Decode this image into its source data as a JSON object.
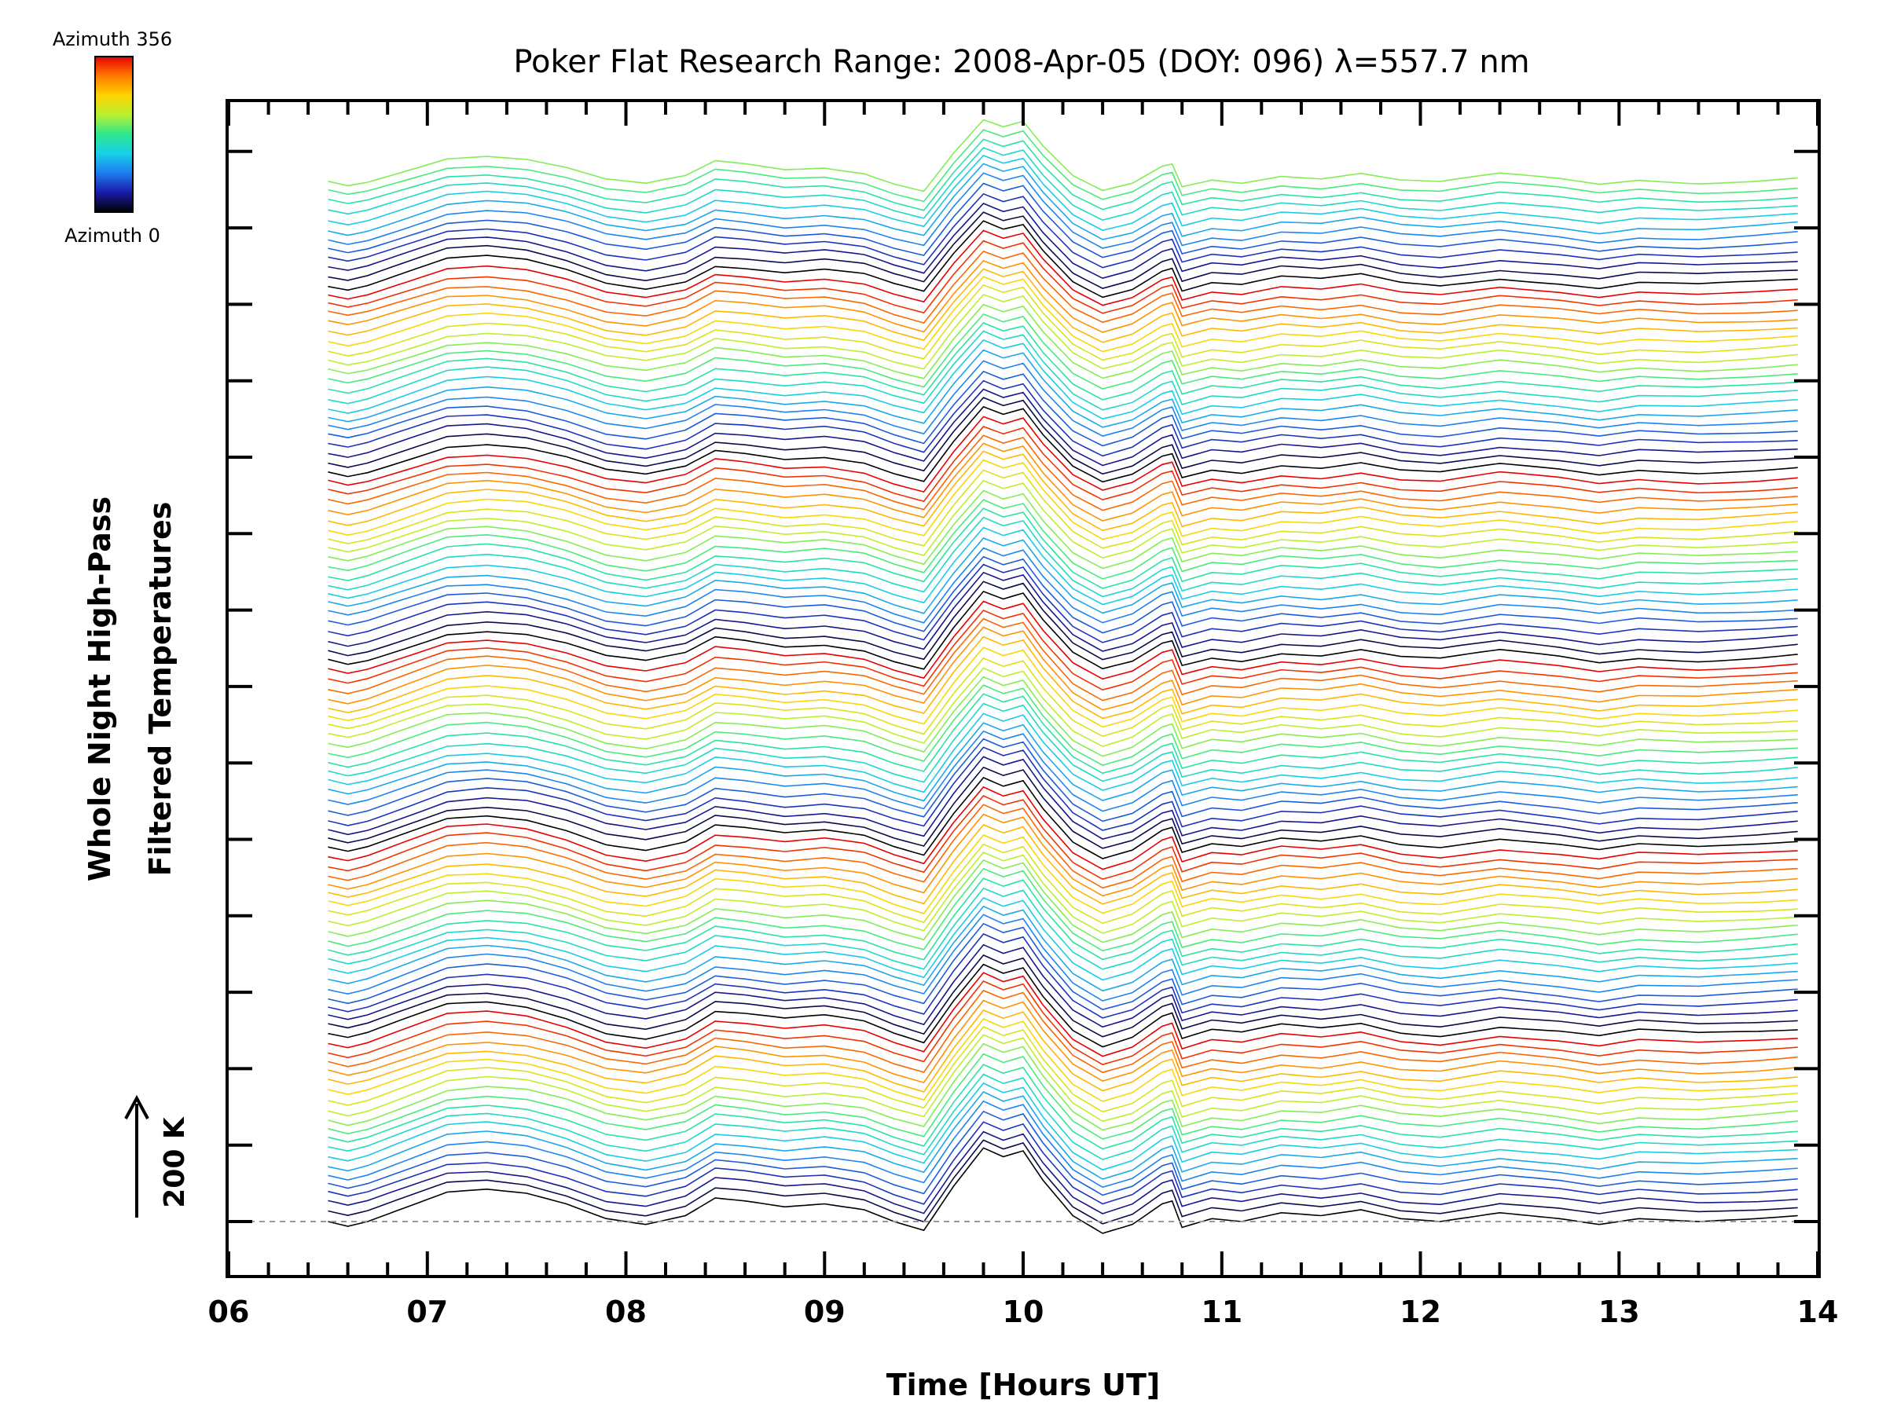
{
  "chart_data": {
    "type": "line",
    "title": "Poker Flat Research Range: 2008-Apr-05 (DOY: 096) λ=557.7 nm",
    "xlabel": "Time [Hours UT]",
    "ylabel_line1": "Whole Night High-Pass",
    "ylabel_line2": "Filtered Temperatures",
    "scale_label": "200 K",
    "xlim": [
      6,
      14
    ],
    "xticks": [
      "06",
      "07",
      "08",
      "09",
      "10",
      "11",
      "12",
      "13",
      "14"
    ],
    "colorbar": {
      "top_label": "Azimuth 356",
      "bottom_label": "Azimuth 0",
      "colormap": [
        "#000000",
        "#1a1aa8",
        "#1c7cf0",
        "#18d0e8",
        "#2ce890",
        "#b8f030",
        "#ffd400",
        "#ff7a00",
        "#e80000"
      ]
    },
    "trace_count": 112,
    "time_range": [
      6.5,
      13.9
    ],
    "baseline_style": "dashed",
    "template_profile": {
      "t": [
        6.5,
        6.6,
        6.7,
        6.9,
        7.1,
        7.3,
        7.5,
        7.7,
        7.9,
        8.1,
        8.3,
        8.45,
        8.6,
        8.8,
        9.0,
        9.2,
        9.35,
        9.5,
        9.65,
        9.8,
        9.9,
        10.0,
        10.1,
        10.25,
        10.4,
        10.55,
        10.7,
        10.75,
        10.8,
        10.95,
        11.1,
        11.3,
        11.5,
        11.7,
        11.9,
        12.1,
        12.4,
        12.7,
        12.9,
        13.1,
        13.4,
        13.7,
        13.9
      ],
      "v": [
        0,
        -8,
        0,
        25,
        50,
        55,
        48,
        30,
        5,
        -5,
        10,
        40,
        35,
        25,
        30,
        20,
        0,
        -15,
        60,
        125,
        110,
        120,
        70,
        10,
        -20,
        -5,
        30,
        35,
        -10,
        5,
        0,
        15,
        10,
        20,
        5,
        0,
        15,
        5,
        -5,
        5,
        0,
        5,
        10
      ]
    },
    "group_period": 20,
    "series_order": "bottom trace = azimuth 0 (black), rising toward azimuth 356"
  }
}
